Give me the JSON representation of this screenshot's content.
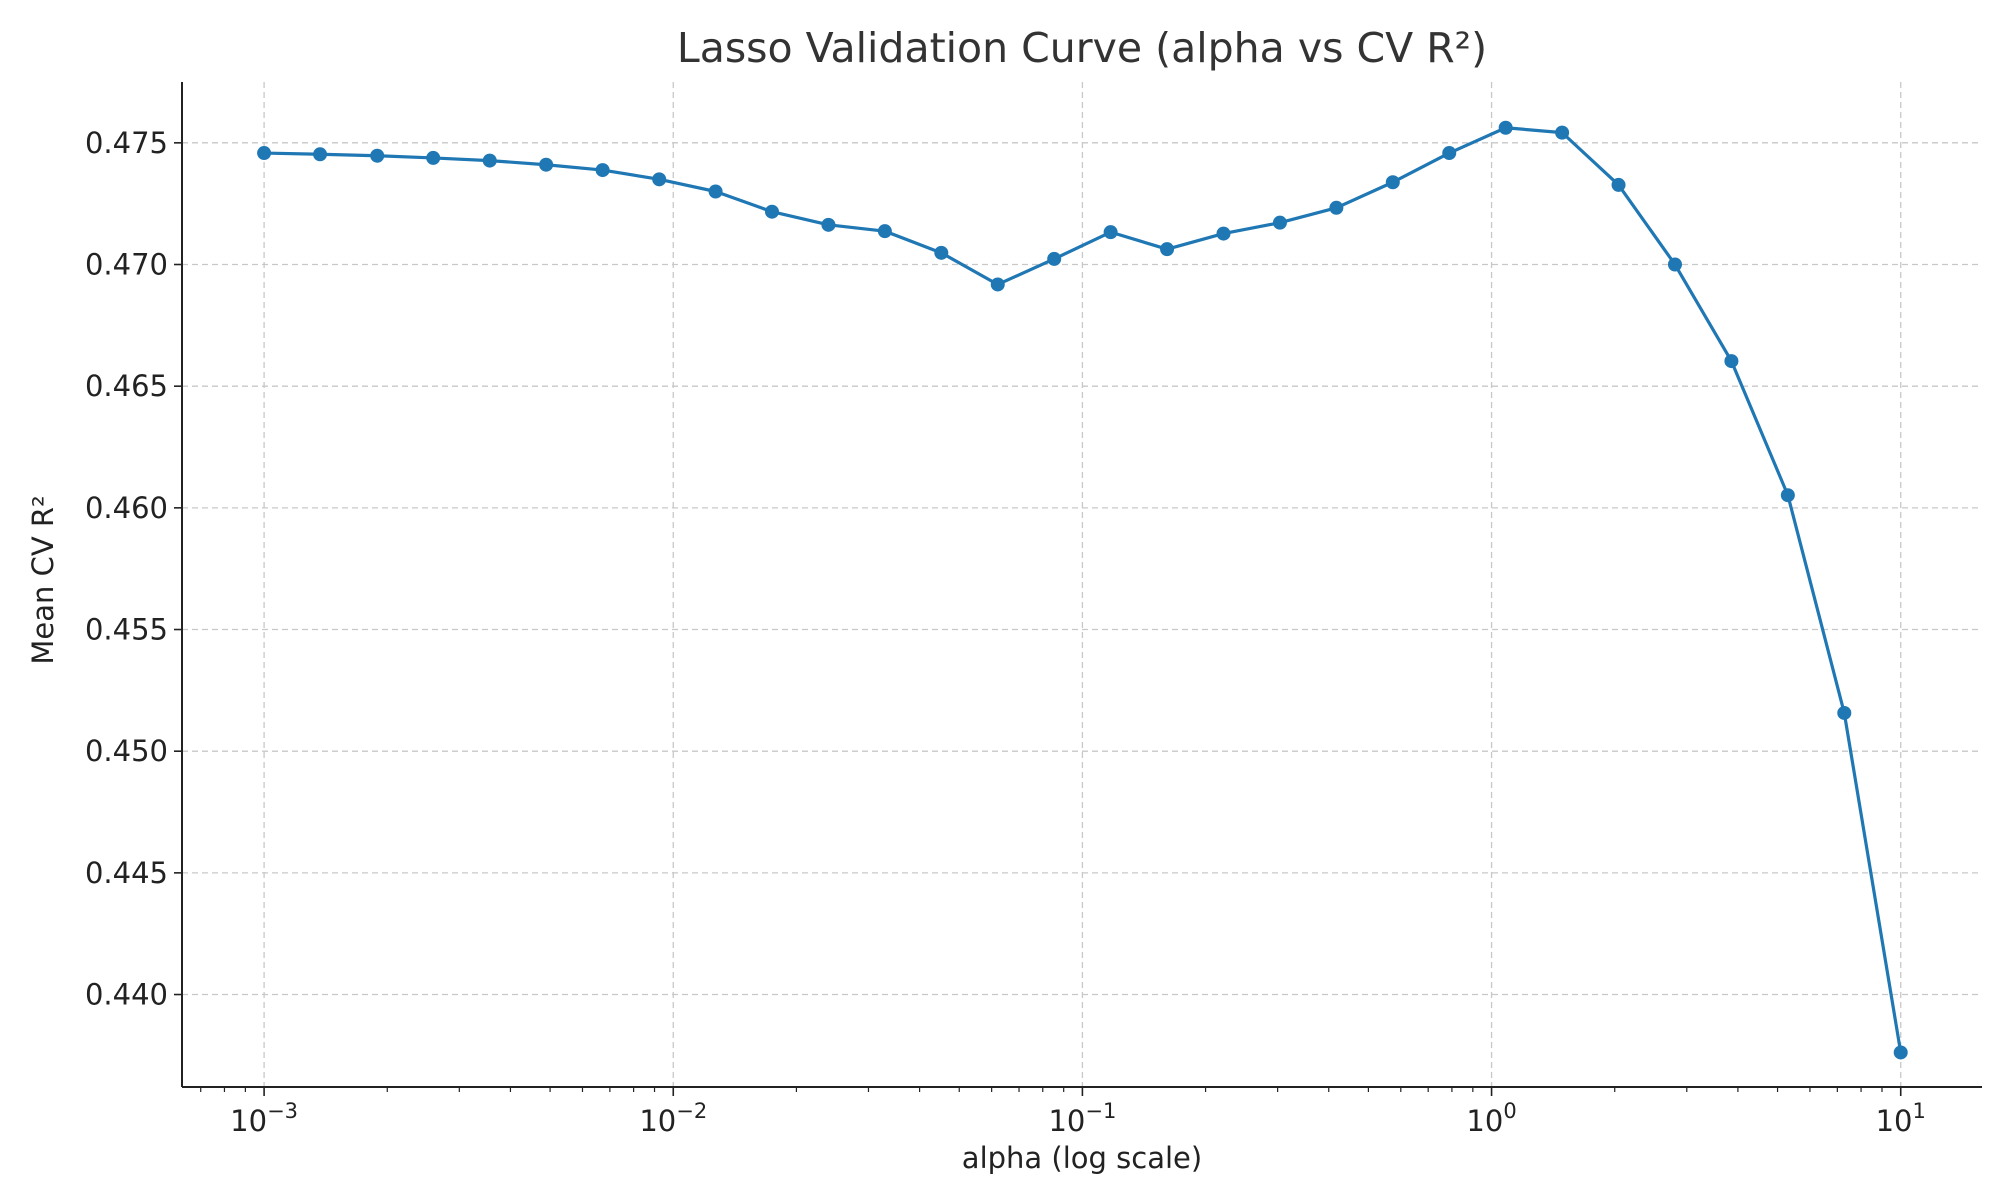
{
  "chart_data": {
    "type": "line",
    "title": "Lasso Validation Curve (alpha vs CV R²)",
    "xlabel": "alpha (log scale)",
    "ylabel": "Mean CV R²",
    "x_scale": "log",
    "xlim": [
      0.00063,
      15.8
    ],
    "ylim": [
      0.4362,
      0.4775
    ],
    "x_ticks": [
      {
        "value": 0.001,
        "base": "10",
        "exp": "−3"
      },
      {
        "value": 0.01,
        "base": "10",
        "exp": "−2"
      },
      {
        "value": 0.1,
        "base": "10",
        "exp": "−1"
      },
      {
        "value": 1,
        "base": "10",
        "exp": "0"
      },
      {
        "value": 10,
        "base": "10",
        "exp": "1"
      }
    ],
    "y_ticks": [
      {
        "value": 0.44,
        "label": "0.440"
      },
      {
        "value": 0.445,
        "label": "0.445"
      },
      {
        "value": 0.45,
        "label": "0.450"
      },
      {
        "value": 0.455,
        "label": "0.455"
      },
      {
        "value": 0.46,
        "label": "0.460"
      },
      {
        "value": 0.465,
        "label": "0.465"
      },
      {
        "value": 0.47,
        "label": "0.470"
      },
      {
        "value": 0.475,
        "label": "0.475"
      }
    ],
    "grid": true,
    "series": [
      {
        "color": "#1f77b4",
        "x": [
          0.001,
          0.00137,
          0.00189,
          0.00259,
          0.00356,
          0.00489,
          0.00672,
          0.00924,
          0.01269,
          0.01743,
          0.02395,
          0.0329,
          0.0452,
          0.0621,
          0.08532,
          0.11721,
          0.16103,
          0.22122,
          0.30392,
          0.41753,
          0.57362,
          0.78805,
          1.08264,
          1.48735,
          2.04336,
          2.80722,
          3.85662,
          5.29832,
          7.27895,
          10.0
        ],
        "y": [
          0.47458,
          0.47453,
          0.47447,
          0.47438,
          0.47427,
          0.4741,
          0.47388,
          0.4735,
          0.473,
          0.47217,
          0.47163,
          0.47137,
          0.47048,
          0.46918,
          0.47023,
          0.47133,
          0.47063,
          0.47127,
          0.47172,
          0.47233,
          0.47338,
          0.47458,
          0.47562,
          0.47542,
          0.47327,
          0.47,
          0.46603,
          0.46052,
          0.45157,
          0.43762
        ]
      }
    ]
  }
}
